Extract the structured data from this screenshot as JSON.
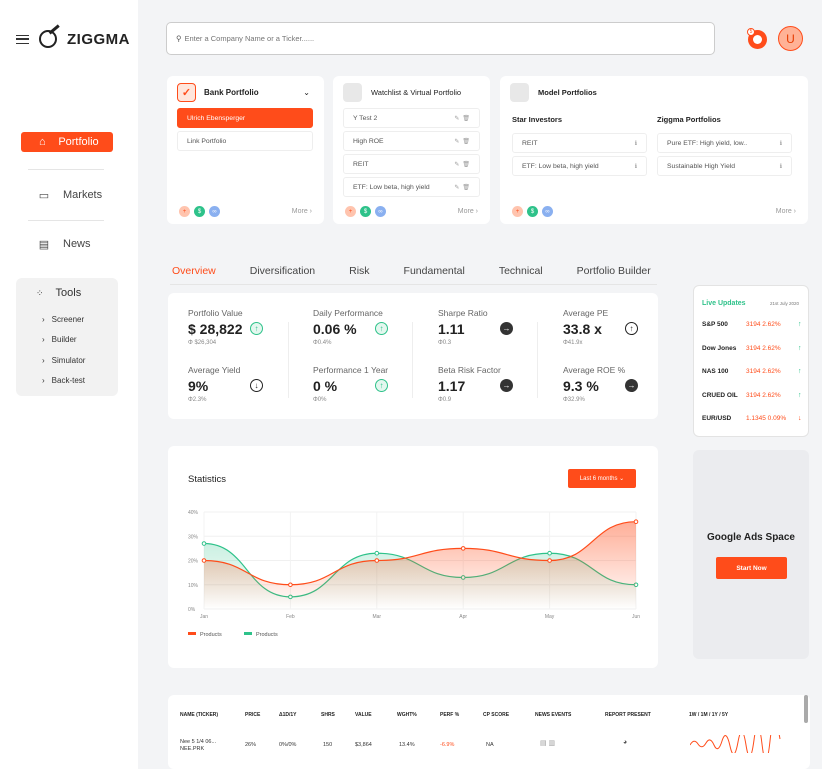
{
  "brand": {
    "name": "ZIGGMA"
  },
  "sidebar": {
    "items": [
      {
        "label": "Portfolio",
        "icon": "portfolio-icon"
      },
      {
        "label": "Markets",
        "icon": "monitor-icon"
      },
      {
        "label": "News",
        "icon": "newspaper-icon"
      }
    ],
    "tools": {
      "label": "Tools",
      "items": [
        "Screener",
        "Builder",
        "Simulator",
        "Back-test"
      ]
    }
  },
  "search": {
    "placeholder": "Enter a Company Name or a Ticker......"
  },
  "header": {
    "notification_count": "5",
    "avatar_initial": "U"
  },
  "cards": {
    "bank": {
      "title": "Bank Portfolio",
      "items": [
        "Ulrich Ebensperger",
        "Link Portfolio"
      ],
      "more": "More"
    },
    "watchlist": {
      "title": "Watchlist & Virtual Portfolio",
      "items": [
        "Y Test 2",
        "High ROE",
        "REIT",
        "ETF: Low beta, high yield"
      ],
      "more": "More"
    },
    "model": {
      "title": "Model Portfolios",
      "star_title": "Star Investors",
      "ziggma_title": "Ziggma Portfolios",
      "star_items": [
        "REIT",
        "ETF: Low beta, high yield"
      ],
      "ziggma_items": [
        "Pure ETF: High yield, low..",
        "Sustainable High Yield"
      ],
      "more": "More"
    }
  },
  "tabs": [
    "Overview",
    "Diversification",
    "Risk",
    "Fundamental",
    "Technical",
    "Portfolio Builder"
  ],
  "metrics": [
    {
      "label": "Portfolio Value",
      "value": "$ 28,822",
      "sub": "Φ $26,304",
      "icon": "up"
    },
    {
      "label": "Daily Performance",
      "value": "0.06 %",
      "sub": "Φ0.4%",
      "icon": "up"
    },
    {
      "label": "Sharpe Ratio",
      "value": "1.11",
      "sub": "Φ0.3",
      "icon": "right"
    },
    {
      "label": "Average PE",
      "value": "33.8 x",
      "sub": "Φ41.9x",
      "icon": "upd"
    },
    {
      "label": "Average Yield",
      "value": "9%",
      "sub": "Φ2.3%",
      "icon": "down"
    },
    {
      "label": "Performance 1 Year",
      "value": "0 %",
      "sub": "Φ0%",
      "icon": "up"
    },
    {
      "label": "Beta Risk Factor",
      "value": "1.17",
      "sub": "Φ0.9",
      "icon": "right"
    },
    {
      "label": "Average ROE %",
      "value": "9.3 %",
      "sub": "Φ32.9%",
      "icon": "right"
    }
  ],
  "statistics": {
    "title": "Statistics",
    "range_button": "Last 6 months ⌄"
  },
  "chart_data": {
    "type": "area",
    "categories": [
      "Jan",
      "Feb",
      "Mar",
      "Apr",
      "May",
      "Jun"
    ],
    "y_ticks": [
      "40%",
      "30%",
      "20%",
      "10%",
      "0%"
    ],
    "ylim": [
      0,
      40
    ],
    "series": [
      {
        "name": "Products",
        "color": "#ff4c1a",
        "values": [
          20,
          10,
          20,
          25,
          20,
          36
        ]
      },
      {
        "name": "Products",
        "color": "#2ec28a",
        "values": [
          27,
          5,
          23,
          13,
          23,
          10
        ]
      }
    ],
    "legend_position": "bottom-left"
  },
  "live_updates": {
    "title": "Live Updates",
    "date": "21st July 2020",
    "quotes": [
      {
        "name": "S&P 500",
        "value": "3194 2.62%",
        "dir": "up"
      },
      {
        "name": "Dow Jones",
        "value": "3194 2.62%",
        "dir": "up"
      },
      {
        "name": "NAS 100",
        "value": "3194 2.62%",
        "dir": "up"
      },
      {
        "name": "CRUED OIL",
        "value": "3194 2.62%",
        "dir": "up"
      },
      {
        "name": "EUR/USD",
        "value": "1.1345 0.09%",
        "dir": "down"
      }
    ]
  },
  "ads": {
    "title": "Google Ads Space",
    "button": "Start Now"
  },
  "holdings": {
    "headers": [
      "NAME (TICKER)",
      "PRICE",
      "Δ1D/1Y",
      "SHRS",
      "VALUE",
      "WGHT%",
      "PERF %",
      "CP SCORE",
      "NEWS EVENTS",
      "REPORT PRESENT",
      "1W / 1M / 1Y / 5Y"
    ],
    "rows": [
      {
        "name": "Nee 5 1/4 06...",
        "ticker": "NEE.PRK",
        "price": "26%",
        "delta": "0%/0%",
        "shrs": "150",
        "value": "$3,864",
        "wght": "13.4%",
        "perf": "-6.9%",
        "cp": "NA"
      }
    ]
  }
}
